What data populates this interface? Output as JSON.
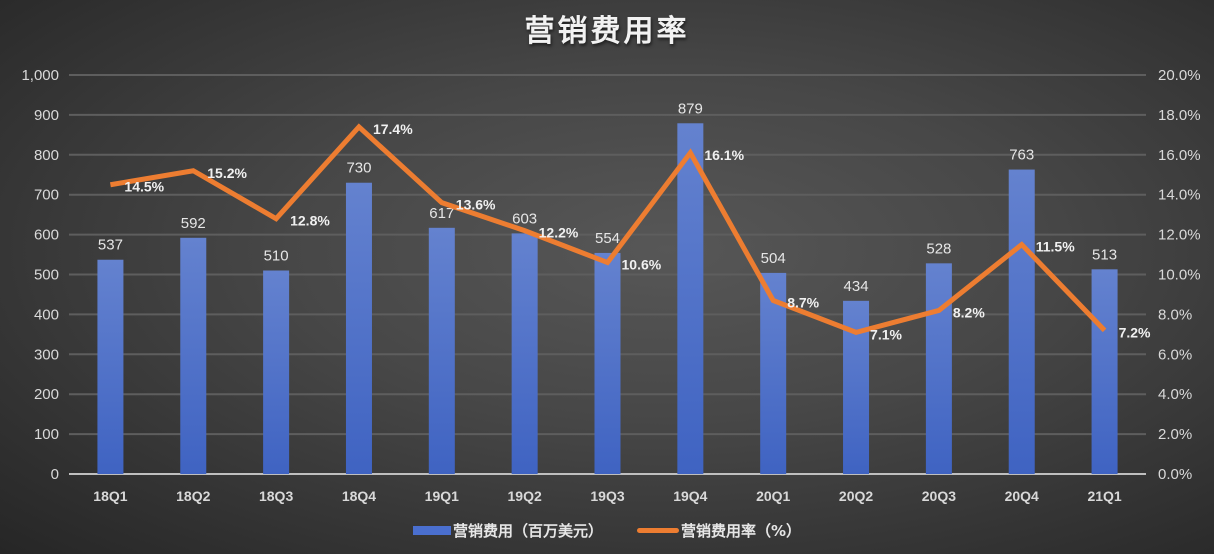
{
  "title": "营销费用率",
  "legend": {
    "bar_label": "营销费用（百万美元）",
    "line_label": "营销费用率（%）"
  },
  "colors": {
    "bar": "#4a6fcf",
    "line": "#ed7d31",
    "background": "#3a3a3a",
    "grid": "#5e5e5e"
  },
  "chart_data": {
    "type": "bar",
    "title": "营销费用率",
    "xlabel": "",
    "ylabel": "",
    "categories": [
      "18Q1",
      "18Q2",
      "18Q3",
      "18Q4",
      "19Q1",
      "19Q2",
      "19Q3",
      "19Q4",
      "20Q1",
      "20Q2",
      "20Q3",
      "20Q4",
      "21Q1"
    ],
    "series": [
      {
        "name": "营销费用（百万美元）",
        "type": "bar",
        "axis": "left",
        "values": [
          537,
          592,
          510,
          730,
          617,
          603,
          554,
          879,
          504,
          434,
          528,
          763,
          513
        ]
      },
      {
        "name": "营销费用率（%）",
        "type": "line",
        "axis": "right",
        "values": [
          14.5,
          15.2,
          12.8,
          17.4,
          13.6,
          12.2,
          10.6,
          16.1,
          8.7,
          7.1,
          8.2,
          11.5,
          7.2
        ],
        "labels": [
          "14.5%",
          "15.2%",
          "12.8%",
          "17.4%",
          "13.6%",
          "12.2%",
          "10.6%",
          "16.1%",
          "8.7%",
          "7.1%",
          "8.2%",
          "11.5%",
          "7.2%"
        ]
      }
    ],
    "ylim": [
      0,
      1000
    ],
    "y2lim": [
      0,
      20
    ],
    "y_ticks": [
      "0",
      "100",
      "200",
      "300",
      "400",
      "500",
      "600",
      "700",
      "800",
      "900",
      "1,000"
    ],
    "y2_ticks": [
      "0.0%",
      "2.0%",
      "4.0%",
      "6.0%",
      "8.0%",
      "10.0%",
      "12.0%",
      "14.0%",
      "16.0%",
      "18.0%",
      "20.0%"
    ],
    "grid": true,
    "legend_position": "bottom"
  }
}
